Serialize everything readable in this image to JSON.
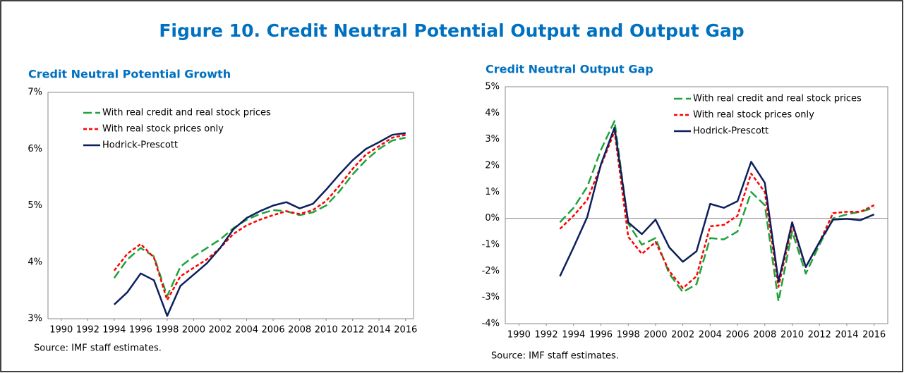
{
  "title": "Figure 10. Credit Neutral Potential Output and Output Gap",
  "chart_data": [
    {
      "type": "line",
      "title": "Credit Neutral Potential Growth",
      "source": "Source: IMF staff estimates.",
      "x": [
        1994,
        1995,
        1996,
        1997,
        1998,
        1999,
        2000,
        2001,
        2002,
        2003,
        2004,
        2005,
        2006,
        2007,
        2008,
        2009,
        2010,
        2011,
        2012,
        2013,
        2014,
        2015,
        2016
      ],
      "xlim": [
        1989,
        2016.6
      ],
      "xticks": [
        1990,
        1992,
        1994,
        1996,
        1998,
        2000,
        2002,
        2004,
        2006,
        2008,
        2010,
        2012,
        2014,
        2016
      ],
      "ylim": [
        3,
        7
      ],
      "yticks": [
        {
          "value": 3,
          "label": "3%"
        },
        {
          "value": 4,
          "label": "4%"
        },
        {
          "value": 5,
          "label": "5%"
        },
        {
          "value": 6,
          "label": "6%"
        },
        {
          "value": 7,
          "label": "7%"
        }
      ],
      "grid": false,
      "legend": "upper left",
      "series": [
        {
          "name": "With real credit and real stock prices",
          "color": "#1fa33a",
          "linestyle": "dashed",
          "values": [
            3.72,
            4.05,
            4.25,
            4.1,
            3.4,
            3.92,
            4.1,
            4.25,
            4.4,
            4.6,
            4.75,
            4.85,
            4.92,
            4.9,
            4.83,
            4.88,
            5.0,
            5.25,
            5.55,
            5.8,
            6.0,
            6.15,
            6.2
          ]
        },
        {
          "name": "With real stock prices only",
          "color": "#ff0000",
          "linestyle": "dotted",
          "values": [
            3.85,
            4.15,
            4.32,
            4.08,
            3.33,
            3.75,
            3.9,
            4.05,
            4.25,
            4.5,
            4.65,
            4.75,
            4.83,
            4.9,
            4.85,
            4.92,
            5.08,
            5.35,
            5.65,
            5.9,
            6.05,
            6.2,
            6.25
          ]
        },
        {
          "name": "Hodrick-Prescott",
          "color": "#0d1f5c",
          "linestyle": "solid",
          "values": [
            3.25,
            3.47,
            3.8,
            3.68,
            3.05,
            3.58,
            3.78,
            3.98,
            4.25,
            4.58,
            4.78,
            4.9,
            5.0,
            5.06,
            4.95,
            5.03,
            5.28,
            5.55,
            5.8,
            6.0,
            6.12,
            6.25,
            6.28
          ]
        }
      ]
    },
    {
      "type": "line",
      "title": "Credit Neutral Output Gap",
      "source": "Source: IMF staff estimates.",
      "x": [
        1993,
        1994,
        1995,
        1996,
        1997,
        1998,
        1999,
        2000,
        2001,
        2002,
        2003,
        2004,
        2005,
        2006,
        2007,
        2008,
        2009,
        2010,
        2011,
        2012,
        2013,
        2014,
        2015,
        2016
      ],
      "xlim": [
        1989,
        2017
      ],
      "xticks": [
        1990,
        1992,
        1994,
        1996,
        1998,
        2000,
        2002,
        2004,
        2006,
        2008,
        2010,
        2012,
        2014,
        2016
      ],
      "ylim": [
        -4,
        5
      ],
      "yticks": [
        {
          "value": -4,
          "label": "-4%"
        },
        {
          "value": -3,
          "label": "-3%"
        },
        {
          "value": -2,
          "label": "-2%"
        },
        {
          "value": -1,
          "label": "-1%"
        },
        {
          "value": 0,
          "label": "0%"
        },
        {
          "value": 1,
          "label": "1%"
        },
        {
          "value": 2,
          "label": "2%"
        },
        {
          "value": 3,
          "label": "3%"
        },
        {
          "value": 4,
          "label": "4%"
        },
        {
          "value": 5,
          "label": "5%"
        }
      ],
      "grid": false,
      "legend": "upper right",
      "series": [
        {
          "name": "With real credit and real stock prices",
          "color": "#1fa33a",
          "linestyle": "dashed",
          "values": [
            -0.15,
            0.4,
            1.2,
            2.6,
            3.7,
            -0.2,
            -1.0,
            -0.75,
            -2.1,
            -2.8,
            -2.5,
            -0.75,
            -0.8,
            -0.5,
            1.0,
            0.5,
            -3.15,
            -0.5,
            -2.1,
            -1.0,
            0.0,
            0.15,
            0.25,
            0.4
          ]
        },
        {
          "name": "With real stock prices only",
          "color": "#ff0000",
          "linestyle": "dotted",
          "values": [
            -0.4,
            0.1,
            0.7,
            2.0,
            3.3,
            -0.7,
            -1.35,
            -0.9,
            -2.0,
            -2.65,
            -2.2,
            -0.3,
            -0.25,
            0.1,
            1.7,
            1.0,
            -2.6,
            -0.25,
            -1.85,
            -0.9,
            0.2,
            0.25,
            0.25,
            0.5
          ]
        },
        {
          "name": "Hodrick-Prescott",
          "color": "#0d1f5c",
          "linestyle": "solid",
          "values": [
            -2.2,
            -1.1,
            0.05,
            2.05,
            3.45,
            -0.15,
            -0.6,
            -0.05,
            -1.1,
            -1.65,
            -1.25,
            0.55,
            0.4,
            0.65,
            2.15,
            1.35,
            -2.4,
            -0.15,
            -1.85,
            -0.9,
            -0.05,
            -0.02,
            -0.07,
            0.15
          ]
        }
      ]
    }
  ]
}
